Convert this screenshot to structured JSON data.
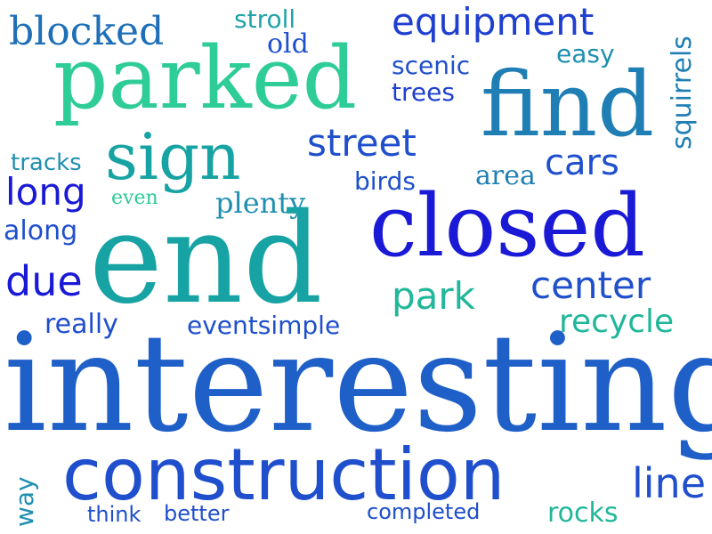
{
  "palette": {
    "royal_blue": "#1a1ad6",
    "medium_blue": "#1f4fcc",
    "steel_blue": "#1f6fb8",
    "teal": "#17a3a3",
    "mint": "#2ecc96",
    "sea_green": "#20b79a"
  },
  "words": [
    {
      "text": "blocked",
      "color": "#1f6fb8"
    },
    {
      "text": "stroll",
      "color": "#20a3a8"
    },
    {
      "text": "old",
      "color": "#1f4fcc"
    },
    {
      "text": "equipment",
      "color": "#1f3fd0"
    },
    {
      "text": "squirrels",
      "color": "#1f7fb5"
    },
    {
      "text": "easy",
      "color": "#1f8fb0"
    },
    {
      "text": "parked",
      "color": "#2ecc96"
    },
    {
      "text": "scenic",
      "color": "#1f4fcc"
    },
    {
      "text": "trees",
      "color": "#1f3fd0"
    },
    {
      "text": "find",
      "color": "#1f7fb5"
    },
    {
      "text": "sign",
      "color": "#17a3a3"
    },
    {
      "text": "street",
      "color": "#1f4fcc"
    },
    {
      "text": "tracks",
      "color": "#1f8fb0"
    },
    {
      "text": "cars",
      "color": "#1f4fcc"
    },
    {
      "text": "long",
      "color": "#1a1ad6"
    },
    {
      "text": "birds",
      "color": "#1f4fcc"
    },
    {
      "text": "area",
      "color": "#1f7fb5"
    },
    {
      "text": "even",
      "color": "#2ecc96"
    },
    {
      "text": "plenty",
      "color": "#1f8fb0"
    },
    {
      "text": "closed",
      "color": "#1a1ad6"
    },
    {
      "text": "along",
      "color": "#1f4fcc"
    },
    {
      "text": "end",
      "color": "#17a3a3"
    },
    {
      "text": "due",
      "color": "#1a1ad6"
    },
    {
      "text": "park",
      "color": "#20b79a"
    },
    {
      "text": "center",
      "color": "#1f4fcc"
    },
    {
      "text": "really",
      "color": "#1f4fcc"
    },
    {
      "text": "eventsimple",
      "color": "#1f4fcc"
    },
    {
      "text": "recycle",
      "color": "#20b79a"
    },
    {
      "text": "interesting",
      "color": "#1f5fc8"
    },
    {
      "text": "construction",
      "color": "#1f4fcc"
    },
    {
      "text": "line",
      "color": "#1f4fcc"
    },
    {
      "text": "way",
      "color": "#1f8fb0"
    },
    {
      "text": "think",
      "color": "#1f4fcc"
    },
    {
      "text": "better",
      "color": "#1f4fcc"
    },
    {
      "text": "completed",
      "color": "#1f4fcc"
    },
    {
      "text": "rocks",
      "color": "#20b79a"
    }
  ]
}
